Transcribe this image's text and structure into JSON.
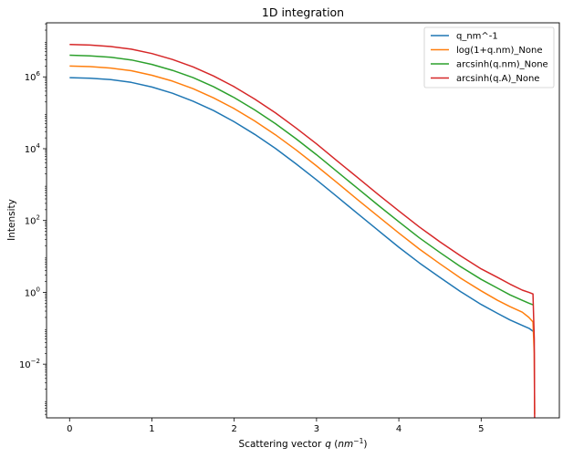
{
  "chart_data": {
    "type": "line",
    "title": "1D integration",
    "xlabel": "Scattering vector",
    "xlabel_q": "q",
    "xlabel_unit_open": " (",
    "xlabel_unit": "nm",
    "xlabel_exp": "−1",
    "xlabel_unit_close": ")",
    "ylabel": "Intensity",
    "xlim": [
      -0.28,
      5.95
    ],
    "ylim": [
      0.00032,
      32000000
    ],
    "yscale": "log",
    "grid": false,
    "legend_position": "top-right",
    "xticks": [
      0,
      1,
      2,
      3,
      4,
      5
    ],
    "yticks": [
      {
        "value": 0.01,
        "base": "10",
        "exp": "−2"
      },
      {
        "value": 1,
        "base": "10",
        "exp": "0"
      },
      {
        "value": 100,
        "base": "10",
        "exp": "2"
      },
      {
        "value": 10000,
        "base": "10",
        "exp": "4"
      },
      {
        "value": 1000000,
        "base": "10",
        "exp": "6"
      }
    ],
    "series": [
      {
        "name": "q_nm^-1",
        "color": "#1f77b4",
        "x": [
          0,
          0.25,
          0.5,
          0.75,
          1.0,
          1.25,
          1.5,
          1.75,
          2.0,
          2.25,
          2.5,
          2.75,
          3.0,
          3.25,
          3.5,
          3.75,
          4.0,
          4.25,
          4.5,
          4.75,
          5.0,
          5.2,
          5.35,
          5.5,
          5.58,
          5.64
        ],
        "y": [
          950000,
          920000,
          840000,
          700000,
          520000,
          350000,
          210000,
          115000,
          56000,
          25000,
          10200,
          3800,
          1350,
          460,
          155,
          53,
          18,
          6.6,
          2.6,
          1.05,
          0.46,
          0.26,
          0.17,
          0.12,
          0.1,
          0.08
        ]
      },
      {
        "name": "log(1+q.nm)_None",
        "color": "#ff7f0e",
        "x": [
          0,
          0.25,
          0.5,
          0.75,
          1.0,
          1.25,
          1.5,
          1.75,
          2.0,
          2.25,
          2.5,
          2.75,
          3.0,
          3.25,
          3.5,
          3.75,
          4.0,
          4.25,
          4.5,
          4.75,
          5.0,
          5.2,
          5.35,
          5.5,
          5.58,
          5.63,
          5.645,
          5.65
        ],
        "y": [
          2000000,
          1930000,
          1760000,
          1480000,
          1110000,
          760000,
          470000,
          260000,
          130000,
          59000,
          24500,
          9300,
          3300,
          1130,
          380,
          130,
          45,
          16,
          6.2,
          2.5,
          1.1,
          0.6,
          0.4,
          0.28,
          0.2,
          0.15,
          0.02,
          0.0004
        ]
      },
      {
        "name": "arcsinh(q.nm)_None",
        "color": "#2ca02c",
        "x": [
          0,
          0.25,
          0.5,
          0.75,
          1.0,
          1.25,
          1.5,
          1.75,
          2.0,
          2.25,
          2.5,
          2.75,
          3.0,
          3.25,
          3.5,
          3.75,
          4.0,
          4.25,
          4.5,
          4.75,
          5.0,
          5.2,
          5.35,
          5.5,
          5.58,
          5.63
        ],
        "y": [
          4000000,
          3860000,
          3520000,
          2960000,
          2220000,
          1520000,
          950000,
          530000,
          265000,
          120000,
          50000,
          19000,
          6800,
          2300,
          780,
          265,
          92,
          33,
          12.8,
          5.2,
          2.3,
          1.3,
          0.85,
          0.6,
          0.5,
          0.45
        ]
      },
      {
        "name": "arcsinh(q.A)_None",
        "color": "#d62728",
        "x": [
          0,
          0.25,
          0.5,
          0.75,
          1.0,
          1.25,
          1.5,
          1.75,
          2.0,
          2.25,
          2.5,
          2.75,
          3.0,
          3.25,
          3.5,
          3.75,
          4.0,
          4.25,
          4.5,
          4.75,
          5.0,
          5.2,
          5.35,
          5.5,
          5.58,
          5.63,
          5.645,
          5.65
        ],
        "y": [
          8000000,
          7700000,
          7000000,
          5900000,
          4450000,
          3050000,
          1900000,
          1060000,
          530000,
          240000,
          100000,
          38000,
          13600,
          4600,
          1560,
          530,
          185,
          66,
          25.5,
          10.4,
          4.5,
          2.6,
          1.7,
          1.15,
          1.0,
          0.9,
          0.05,
          0.0003
        ]
      }
    ]
  }
}
